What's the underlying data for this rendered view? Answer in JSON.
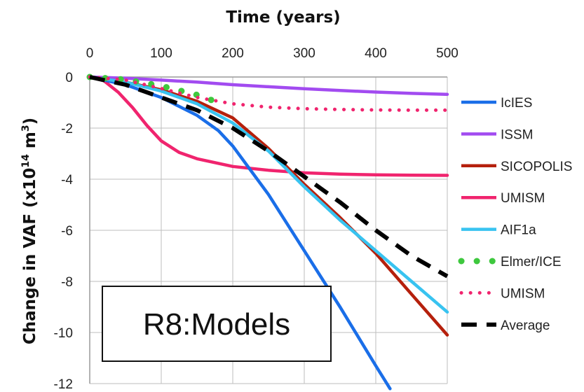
{
  "chart_data": {
    "type": "line",
    "xlabel": "Time (years)",
    "ylabel_prefix": "Change in VAF (x10",
    "ylabel_exp1": "14",
    "ylabel_mid": " m",
    "ylabel_exp2": "3",
    "ylabel_suffix": ")",
    "xlim": [
      0,
      500
    ],
    "ylim": [
      -12,
      0
    ],
    "x_ticks": [
      0,
      100,
      200,
      300,
      400,
      500
    ],
    "y_ticks": [
      0,
      -2,
      -4,
      -6,
      -8,
      -10,
      -12
    ],
    "x_axis_position": "top",
    "grid": true,
    "legend_position": "right",
    "annotation": "R8:Models",
    "series": [
      {
        "name": "IcIES",
        "color": "#1a6ee8",
        "style": "solid",
        "x": [
          0,
          50,
          100,
          150,
          180,
          200,
          250,
          300,
          350,
          400,
          420
        ],
        "y": [
          0,
          -0.3,
          -0.8,
          -1.5,
          -2.1,
          -2.7,
          -4.6,
          -6.8,
          -9.0,
          -11.3,
          -12.2
        ]
      },
      {
        "name": "ISSM",
        "color": "#a24bf0",
        "style": "solid",
        "x": [
          0,
          50,
          100,
          150,
          200,
          250,
          300,
          350,
          400,
          450,
          500
        ],
        "y": [
          0,
          -0.05,
          -0.12,
          -0.2,
          -0.3,
          -0.38,
          -0.46,
          -0.53,
          -0.59,
          -0.64,
          -0.68
        ]
      },
      {
        "name": "SICOPOLIS",
        "color": "#b5200c",
        "style": "solid",
        "x": [
          0,
          50,
          100,
          150,
          200,
          250,
          300,
          350,
          400,
          450,
          500
        ],
        "y": [
          0,
          -0.2,
          -0.5,
          -0.95,
          -1.6,
          -2.8,
          -4.2,
          -5.5,
          -6.9,
          -8.5,
          -10.1
        ]
      },
      {
        "name": "UMISM",
        "color": "#f0246e",
        "style": "solid",
        "x": [
          0,
          20,
          40,
          60,
          80,
          100,
          125,
          150,
          200,
          250,
          300,
          350,
          400,
          450,
          500
        ],
        "y": [
          0,
          -0.15,
          -0.6,
          -1.2,
          -1.9,
          -2.5,
          -2.95,
          -3.2,
          -3.5,
          -3.65,
          -3.75,
          -3.8,
          -3.83,
          -3.84,
          -3.85
        ]
      },
      {
        "name": "AIF1a",
        "color": "#38c3f0",
        "style": "solid",
        "x": [
          0,
          50,
          100,
          150,
          200,
          250,
          300,
          350,
          400,
          450,
          500
        ],
        "y": [
          0,
          -0.2,
          -0.55,
          -1.05,
          -1.8,
          -2.9,
          -4.3,
          -5.6,
          -6.8,
          -8.0,
          -9.2
        ]
      },
      {
        "name": "Elmer/ICE",
        "color": "#3ec83e",
        "style": "dots",
        "x": [
          0,
          50,
          100,
          150,
          185
        ],
        "y": [
          0,
          -0.1,
          -0.35,
          -0.7,
          -1.05
        ]
      },
      {
        "name": "UMISM",
        "color": "#f0246e",
        "style": "dotted",
        "x": [
          0,
          50,
          100,
          150,
          200,
          250,
          300,
          350,
          400,
          450,
          500
        ],
        "y": [
          0,
          -0.12,
          -0.45,
          -0.8,
          -1.05,
          -1.18,
          -1.24,
          -1.27,
          -1.29,
          -1.3,
          -1.3
        ]
      },
      {
        "name": "Average",
        "color": "#000000",
        "style": "dashed",
        "x": [
          0,
          50,
          100,
          150,
          200,
          250,
          300,
          350,
          400,
          450,
          500
        ],
        "y": [
          0,
          -0.3,
          -0.8,
          -1.3,
          -2.0,
          -2.9,
          -3.9,
          -4.9,
          -6.0,
          -7.0,
          -7.8
        ]
      }
    ]
  }
}
